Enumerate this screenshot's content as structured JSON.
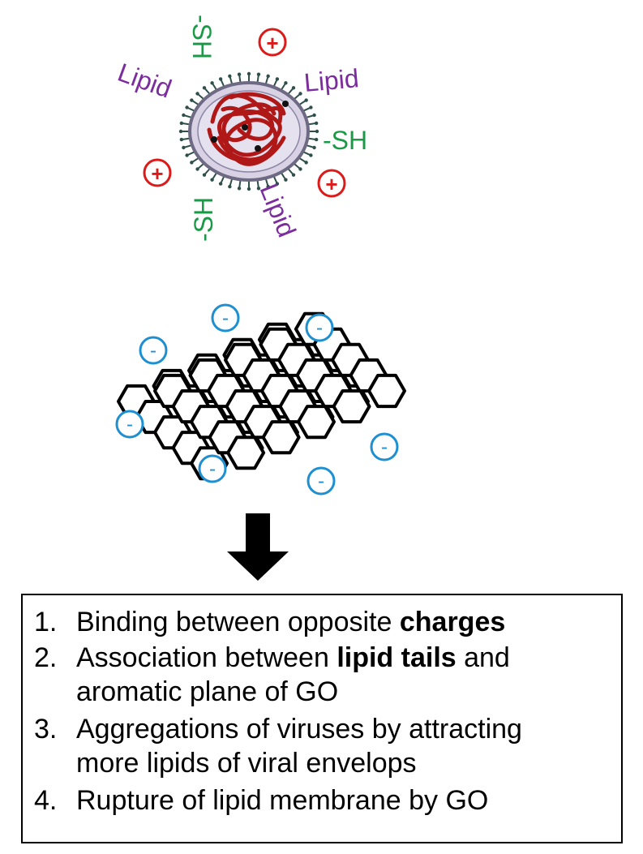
{
  "virus": {
    "labels": {
      "lipid_left": "Lipid",
      "lipid_right": "Lipid",
      "lipid_bottom": "Lipid",
      "sh_top": "-SH",
      "sh_right": "-SH",
      "sh_bottom": "-SH"
    },
    "charge_symbol": "+",
    "colors": {
      "lipid": "#7b2d9e",
      "thiol": "#1a9a46",
      "positive": "#dd1a1a",
      "rna": "#b01818",
      "envelope": "#d8d2e4"
    }
  },
  "graphene_oxide": {
    "charge_symbol": "-",
    "colors": {
      "negative": "#1e8fd0",
      "lattice": "#000000"
    }
  },
  "arrow": {
    "icon": "down-arrow-icon",
    "color": "#000000"
  },
  "steps": [
    {
      "num": "1.",
      "pre": "Binding between opposite ",
      "bold": "charges",
      "post": "",
      "cont": ""
    },
    {
      "num": "2.",
      "pre": "Association between ",
      "bold": "lipid tails",
      "post": " and",
      "cont": "aromatic plane of GO"
    },
    {
      "num": "3.",
      "pre": "Aggregations of viruses by attracting",
      "bold": "",
      "post": "",
      "cont": "more lipids of viral envelops"
    },
    {
      "num": "4.",
      "pre": "Rupture of lipid membrane by GO",
      "bold": "",
      "post": "",
      "cont": ""
    }
  ]
}
